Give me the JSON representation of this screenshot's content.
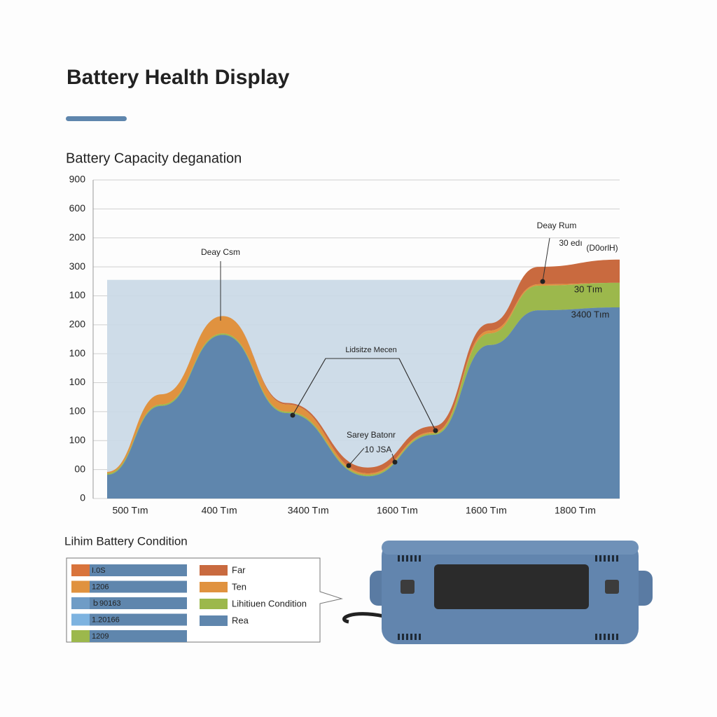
{
  "header": {
    "title": "Battery Health Display"
  },
  "chart_data": {
    "type": "area",
    "title": "Battery Capacity deganation",
    "x": [
      -0.26,
      0.35,
      1.04,
      1.76,
      2.67,
      3.41,
      4.04,
      4.59,
      5.5
    ],
    "xlim": [
      -0.26,
      5.5
    ],
    "xticks": [
      {
        "value": 0,
        "label": "500 Tım"
      },
      {
        "value": 1,
        "label": "400 Tım"
      },
      {
        "value": 2,
        "label": "3400 Tım"
      },
      {
        "value": 3,
        "label": "1600 Tım"
      },
      {
        "value": 4,
        "label": "1600 Tım"
      },
      {
        "value": 5,
        "label": "1800 Tım"
      }
    ],
    "ylim": [
      0,
      11
    ],
    "yticks": [
      0,
      {
        "value": 1,
        "label": "00"
      },
      {
        "value": 2,
        "label": "100"
      },
      {
        "value": 3,
        "label": "100"
      },
      {
        "value": 4,
        "label": "100"
      },
      {
        "value": 5,
        "label": "100"
      },
      {
        "value": 6,
        "label": "200"
      },
      {
        "value": 7,
        "label": "100"
      },
      {
        "value": 8,
        "label": "300"
      },
      {
        "value": 9,
        "label": "200"
      },
      {
        "value": 10,
        "label": "600"
      },
      {
        "value": 11,
        "label": "900"
      }
    ],
    "grid": true,
    "stacked": true,
    "reference_band": {
      "value": 7.55,
      "color": "#c9d8e6"
    },
    "series": [
      {
        "name": "Far",
        "color": "#c96a3f",
        "values": [
          0,
          0,
          0,
          0.05,
          0.2,
          0.2,
          0.25,
          0.6,
          0.8
        ]
      },
      {
        "name": "Ten",
        "color": "#e0923f",
        "values": [
          0.05,
          0.35,
          0.6,
          0.25,
          0.05,
          0.05,
          0.1,
          0.05,
          0
        ]
      },
      {
        "name": "Lihitiuen Condition",
        "color": "#9cb84c",
        "values": [
          0.05,
          0.05,
          0.05,
          0.05,
          0.05,
          0.05,
          0.4,
          0.85,
          0.85
        ]
      },
      {
        "name": "Rea",
        "color": "#5f86ad",
        "values": [
          0.82,
          3.2,
          5.65,
          2.95,
          0.77,
          2.2,
          5.3,
          6.5,
          6.6
        ]
      }
    ],
    "annotations": [
      "Deay Csm",
      "Lidsitze Mecen",
      "Sarey Batonr",
      "10 JSA",
      "Deay Rum",
      "30 edı",
      "(D0orlH)",
      "30 Tım",
      "3400 Tım"
    ]
  },
  "condition_panel": {
    "title": "Lihim Battery Condition",
    "bars": [
      {
        "label": "I.0S",
        "color": "#d9743c"
      },
      {
        "label": "1206",
        "color": "#e0923f"
      },
      {
        "label": "ｂ90163",
        "color": "#6f9cc6"
      },
      {
        "label": "1.20166",
        "color": "#7db3e0"
      },
      {
        "label": "1209",
        "color": "#9cb84c"
      }
    ]
  }
}
